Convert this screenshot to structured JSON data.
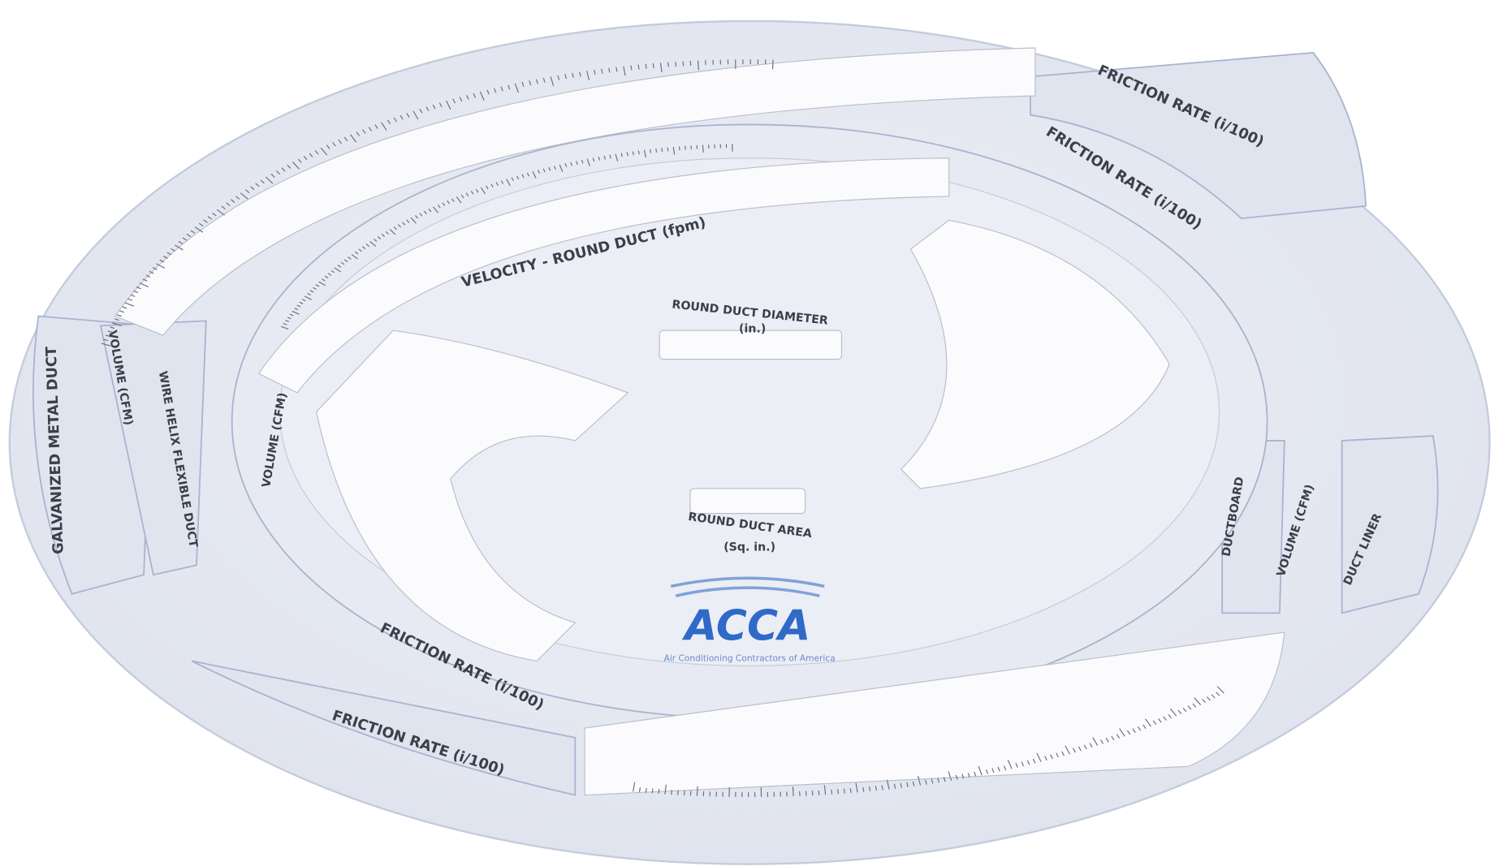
{
  "wheel": {
    "outer_labels": {
      "friction_top_outer": "FRICTION RATE (i/100)",
      "friction_top_inner": "FRICTION RATE (i/100)",
      "galvanized": "GALVANIZED METAL DUCT",
      "volume_left_outer": "VOLUME (CFM)",
      "wire_helix": "WIRE HELIX FLEXIBLE DUCT",
      "volume_left_inner": "VOLUME (CFM)",
      "ductboard": "DUCTBOARD",
      "volume_right": "VOLUME (CFM)",
      "duct_liner": "DUCT LINER",
      "friction_bottom_inner": "FRICTION RATE (i/100)",
      "friction_bottom_outer": "FRICTION RATE (i/100)"
    },
    "center_labels": {
      "velocity": "VELOCITY - ROUND DUCT (fpm)",
      "diameter_title": "ROUND DUCT DIAMETER",
      "diameter_unit": "(in.)",
      "area_title": "ROUND DUCT AREA",
      "area_unit": "(Sq. in.)"
    },
    "logo": {
      "mark": "ACCA",
      "tagline": "Air Conditioning Contractors of America"
    }
  }
}
